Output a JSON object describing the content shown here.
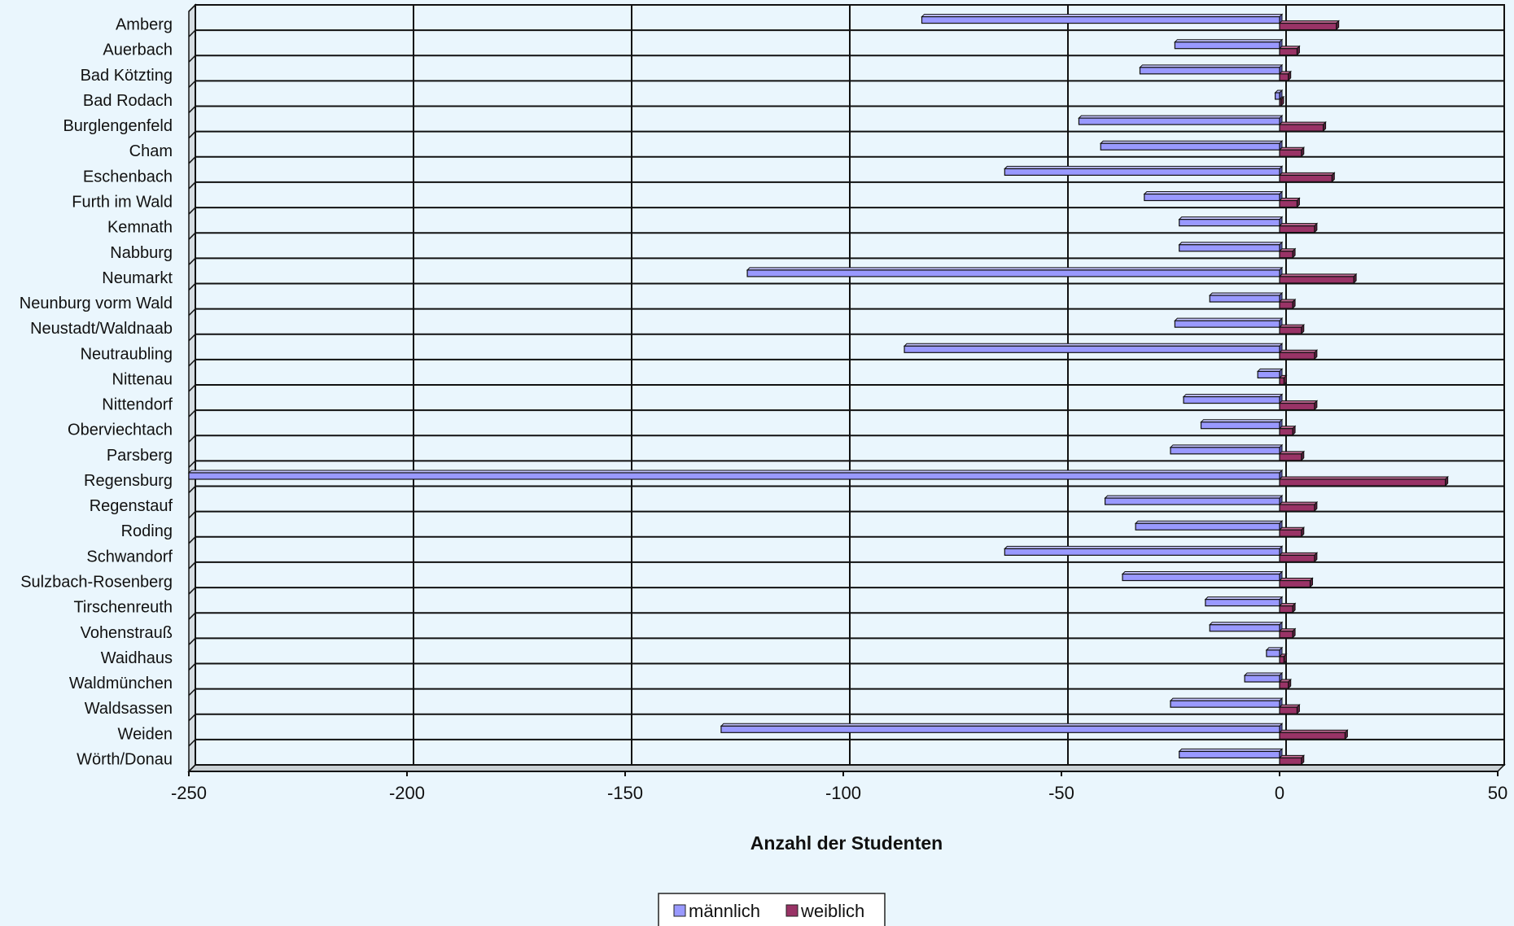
{
  "chart_data": {
    "type": "bar",
    "orientation": "horizontal",
    "categories": [
      "Amberg",
      "Auerbach",
      "Bad Kötzting",
      "Bad Rodach",
      "Burglengenfeld",
      "Cham",
      "Eschenbach",
      "Furth im Wald",
      "Kemnath",
      "Nabburg",
      "Neumarkt",
      "Neunburg vorm Wald",
      "Neustadt/Waldnaab",
      "Neutraubling",
      "Nittenau",
      "Nittendorf",
      "Oberviechtach",
      "Parsberg",
      "Regensburg",
      "Regenstauf",
      "Roding",
      "Schwandorf",
      "Sulzbach-Rosenberg",
      "Tirschenreuth",
      "Vohenstrauß",
      "Waidhaus",
      "Waldmünchen",
      "Waldsassen",
      "Weiden",
      "Wörth/Donau"
    ],
    "series": [
      {
        "name": "männlich",
        "color": "#9999ff",
        "values": [
          -82,
          -24,
          -32,
          -1,
          -46,
          -41,
          -63,
          -31,
          -23,
          -23,
          -122,
          -16,
          -24,
          -86,
          -5,
          -22,
          -18,
          -25,
          -250,
          -40,
          -33,
          -63,
          -36,
          -17,
          -16,
          -3,
          -8,
          -25,
          -128,
          -23
        ]
      },
      {
        "name": "weiblich",
        "color": "#993366",
        "values": [
          13,
          4,
          2,
          0,
          10,
          5,
          12,
          4,
          8,
          3,
          17,
          3,
          5,
          8,
          1,
          8,
          3,
          5,
          38,
          8,
          5,
          8,
          7,
          3,
          3,
          1,
          2,
          4,
          15,
          5
        ]
      }
    ],
    "xlabel": "Anzahl der Studenten",
    "xlim": [
      -250,
      50
    ],
    "xticks": [
      "-250",
      "-200",
      "-150",
      "-100",
      "-50",
      "0",
      "50"
    ],
    "grid": true,
    "legend": "bottom-center"
  }
}
